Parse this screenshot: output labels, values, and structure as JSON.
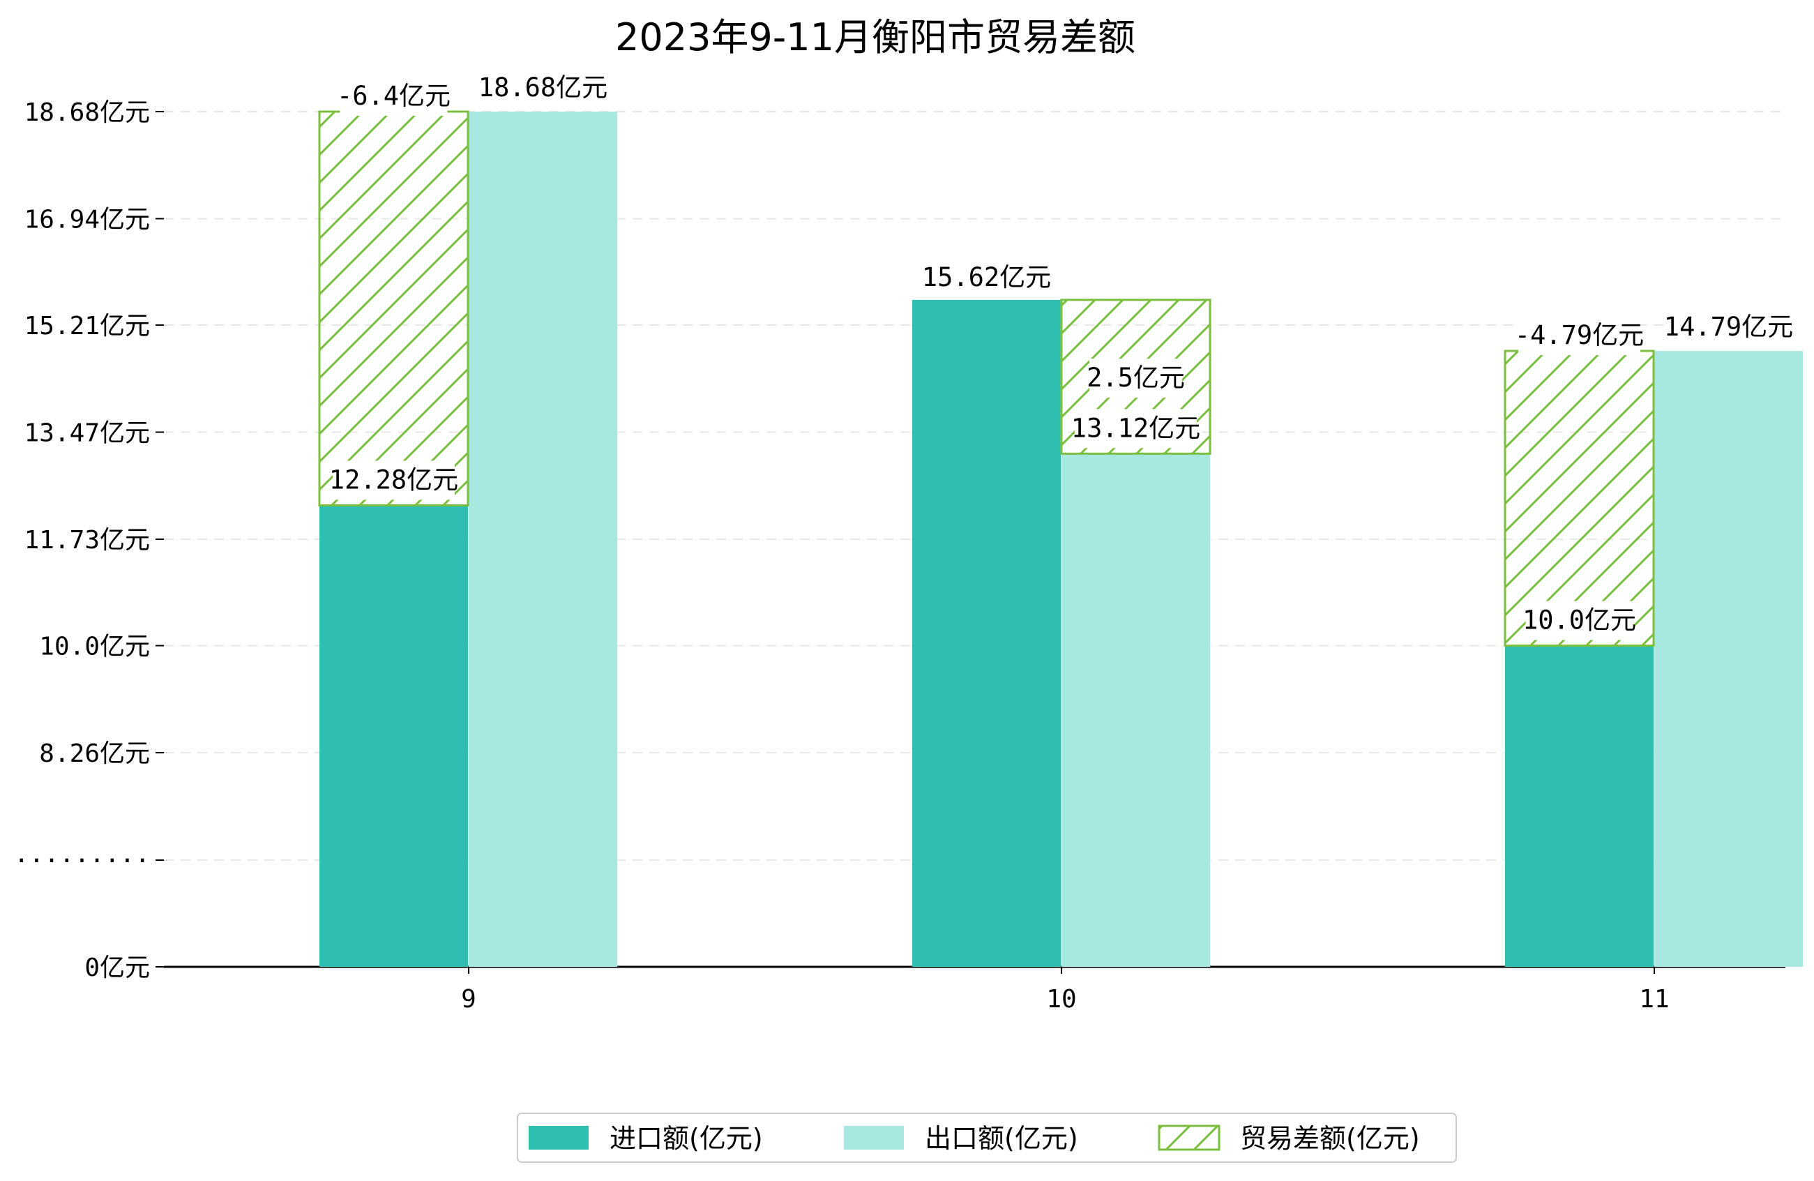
{
  "chart_data": {
    "type": "bar",
    "title": "2023年9-11月衡阳市贸易差额",
    "categories": [
      "9",
      "10",
      "11"
    ],
    "series": [
      {
        "name": "进口额(亿元)",
        "values": [
          12.28,
          15.62,
          10.0
        ],
        "labels": [
          "12.28亿元",
          "15.62亿元",
          "10.0亿元"
        ]
      },
      {
        "name": "出口额(亿元)",
        "values": [
          18.68,
          13.12,
          14.79
        ],
        "labels": [
          "18.68亿元",
          "13.12亿元",
          "14.79亿元"
        ]
      },
      {
        "name": "贸易差额(亿元)",
        "values": [
          -6.4,
          2.5,
          -4.79
        ],
        "labels": [
          "-6.4亿元",
          "2.5亿元",
          "-4.79亿元"
        ]
      }
    ],
    "yticks": [
      "0亿元",
      "·········",
      "8.26亿元",
      "10.0亿元",
      "11.73亿元",
      "13.47亿元",
      "15.21亿元",
      "16.94亿元",
      "18.68亿元"
    ],
    "ytick_values": [
      0,
      6.52,
      8.26,
      10.0,
      11.73,
      13.47,
      15.21,
      16.94,
      18.68
    ],
    "axis_break": "·········",
    "ylim": [
      0,
      18.68
    ],
    "grid": true,
    "legend_position": "bottom-center",
    "colors": {
      "import": "#2fbfb1",
      "export": "#a9e7e1",
      "balance": "#7bbf3e",
      "grid": "#e8e8e8"
    }
  }
}
